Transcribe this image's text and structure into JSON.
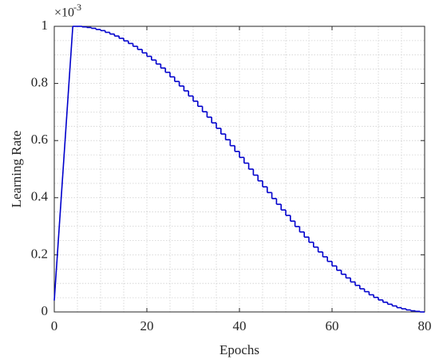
{
  "chart_data": {
    "type": "line",
    "x_label": "Epochs",
    "y_label": "Learning Rate",
    "y_scale_base": "×10",
    "y_scale_exponent": "-3",
    "xlim": [
      0,
      80
    ],
    "ylim": [
      0,
      1
    ],
    "xticks": [
      0,
      20,
      40,
      60,
      80
    ],
    "yticks": [
      0,
      {
        "value": 0.2,
        "label": "0.2"
      },
      {
        "value": 0.4,
        "label": "0.4"
      },
      {
        "value": 0.6,
        "label": "0.6"
      },
      {
        "value": 0.8,
        "label": "0.8"
      },
      1
    ],
    "grid": true,
    "minor_grid": true,
    "color": "#0000cc",
    "warmup": {
      "x": [
        0,
        4
      ],
      "values": [
        0.04,
        1
      ]
    },
    "steps": {
      "x": [
        4,
        5,
        6,
        7,
        8,
        9,
        10,
        11,
        12,
        13,
        14,
        15,
        16,
        17,
        18,
        19,
        20,
        21,
        22,
        23,
        24,
        25,
        26,
        27,
        28,
        29,
        30,
        31,
        32,
        33,
        34,
        35,
        36,
        37,
        38,
        39,
        40,
        41,
        42,
        43,
        44,
        45,
        46,
        47,
        48,
        49,
        50,
        51,
        52,
        53,
        54,
        55,
        56,
        57,
        58,
        59,
        60,
        61,
        62,
        63,
        64,
        65,
        66,
        67,
        68,
        69,
        70,
        71,
        72,
        73,
        74,
        75,
        76,
        77,
        78,
        79
      ],
      "values": [
        1.0,
        1.0,
        0.998,
        0.996,
        0.993,
        0.989,
        0.985,
        0.979,
        0.973,
        0.966,
        0.958,
        0.949,
        0.94,
        0.93,
        0.919,
        0.907,
        0.895,
        0.882,
        0.868,
        0.854,
        0.839,
        0.823,
        0.807,
        0.791,
        0.774,
        0.756,
        0.738,
        0.72,
        0.701,
        0.682,
        0.662,
        0.643,
        0.623,
        0.603,
        0.582,
        0.562,
        0.541,
        0.521,
        0.5,
        0.479,
        0.459,
        0.438,
        0.418,
        0.397,
        0.377,
        0.357,
        0.338,
        0.318,
        0.299,
        0.28,
        0.262,
        0.244,
        0.227,
        0.21,
        0.193,
        0.177,
        0.161,
        0.146,
        0.132,
        0.119,
        0.105,
        0.093,
        0.081,
        0.071,
        0.06,
        0.051,
        0.042,
        0.034,
        0.027,
        0.021,
        0.015,
        0.011,
        0.007,
        0.004,
        0.002,
        0.0
      ]
    }
  }
}
